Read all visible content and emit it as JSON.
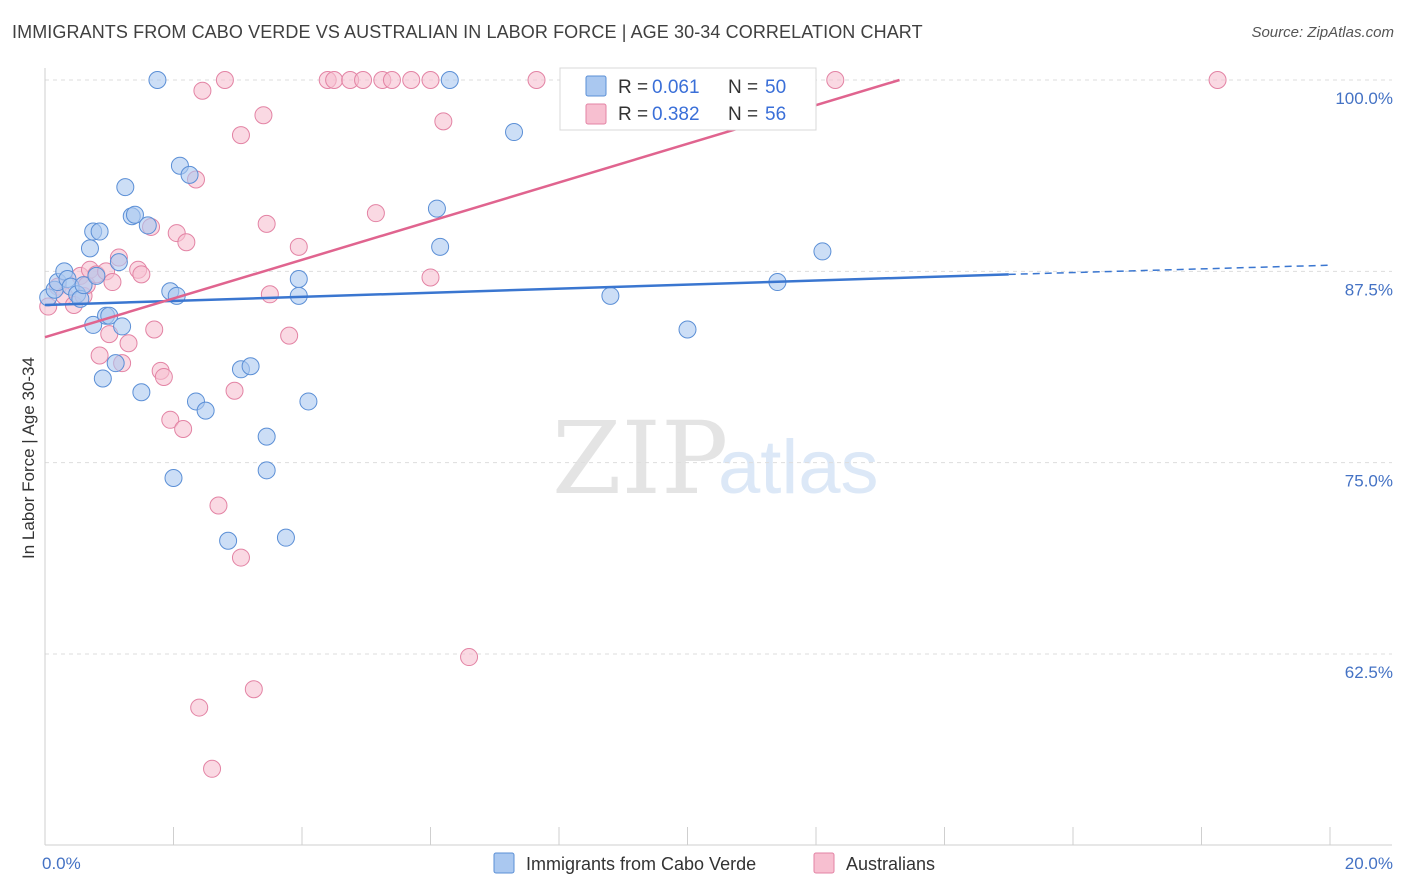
{
  "header": {
    "title": "IMMIGRANTS FROM CABO VERDE VS AUSTRALIAN IN LABOR FORCE | AGE 30-34 CORRELATION CHART",
    "source": "Source: ZipAtlas.com"
  },
  "watermark": {
    "zip": "ZIP",
    "atlas": "atlas"
  },
  "legend": {
    "r_label": "R =",
    "n_label": "N =",
    "entries": [
      {
        "name": "Immigrants from Cabo Verde",
        "r": "0.061",
        "n": "50",
        "fill": "#aac8f0",
        "stroke": "#5b8fd6"
      },
      {
        "name": "Australians",
        "r": "0.382",
        "n": "56",
        "fill": "#f7bfd0",
        "stroke": "#e383a4"
      }
    ]
  },
  "colors": {
    "blue_line": "#3a76d0",
    "pink_line": "#e0648f",
    "grid": "#dddddd",
    "axis_text": "#4472c4"
  },
  "chart_data": {
    "type": "scatter",
    "title": "IMMIGRANTS FROM CABO VERDE VS AUSTRALIAN IN LABOR FORCE | AGE 30-34 CORRELATION CHART",
    "xlabel": "",
    "ylabel": "In Labor Force | Age 30-34",
    "xlim": [
      0,
      20
    ],
    "ylim": [
      50,
      101.5
    ],
    "x_tick_labels": [
      {
        "value": 0,
        "label": "0.0%"
      },
      {
        "value": 20,
        "label": "20.0%"
      }
    ],
    "y_tick_labels": [
      {
        "value": 100,
        "label": "100.0%"
      },
      {
        "value": 87.5,
        "label": "87.5%"
      },
      {
        "value": 75,
        "label": "75.0%"
      },
      {
        "value": 62.5,
        "label": "62.5%"
      }
    ],
    "series": [
      {
        "name": "Immigrants from Cabo Verde",
        "r": 0.061,
        "n": 50,
        "trend": {
          "x": [
            0,
            15
          ],
          "y": [
            85.3,
            87.3
          ],
          "dashed_extension_to_x": 20,
          "dashed_end_y": 87.9
        },
        "points": [
          [
            0.05,
            85.8
          ],
          [
            0.15,
            86.3
          ],
          [
            0.2,
            86.8
          ],
          [
            0.3,
            87.5
          ],
          [
            0.35,
            87.0
          ],
          [
            0.4,
            86.5
          ],
          [
            0.5,
            86.0
          ],
          [
            0.55,
            85.7
          ],
          [
            0.6,
            86.6
          ],
          [
            0.7,
            89.0
          ],
          [
            0.75,
            90.1
          ],
          [
            0.8,
            87.2
          ],
          [
            0.75,
            84.0
          ],
          [
            0.85,
            90.1
          ],
          [
            0.9,
            80.5
          ],
          [
            0.95,
            84.6
          ],
          [
            1.0,
            84.6
          ],
          [
            1.1,
            81.5
          ],
          [
            1.15,
            88.1
          ],
          [
            1.2,
            83.9
          ],
          [
            1.25,
            93.0
          ],
          [
            1.35,
            91.1
          ],
          [
            1.4,
            91.2
          ],
          [
            1.5,
            79.6
          ],
          [
            1.6,
            90.5
          ],
          [
            1.75,
            100.0
          ],
          [
            1.95,
            86.2
          ],
          [
            2.0,
            74.0
          ],
          [
            2.05,
            85.9
          ],
          [
            2.1,
            94.4
          ],
          [
            2.25,
            93.8
          ],
          [
            2.35,
            79.0
          ],
          [
            2.5,
            78.4
          ],
          [
            2.85,
            69.9
          ],
          [
            3.05,
            81.1
          ],
          [
            3.2,
            81.3
          ],
          [
            3.45,
            76.7
          ],
          [
            3.45,
            74.5
          ],
          [
            3.75,
            70.1
          ],
          [
            3.95,
            87.0
          ],
          [
            3.95,
            85.9
          ],
          [
            4.1,
            79.0
          ],
          [
            6.1,
            91.6
          ],
          [
            6.15,
            89.1
          ],
          [
            6.3,
            100.0
          ],
          [
            7.3,
            96.6
          ],
          [
            8.8,
            85.9
          ],
          [
            10.0,
            83.7
          ],
          [
            11.4,
            86.8
          ],
          [
            12.1,
            88.8
          ]
        ]
      },
      {
        "name": "Australians",
        "r": 0.382,
        "n": 56,
        "trend": {
          "x": [
            0,
            13.3
          ],
          "y": [
            83.2,
            100.0
          ]
        },
        "points": [
          [
            0.05,
            85.2
          ],
          [
            0.2,
            86.5
          ],
          [
            0.3,
            85.9
          ],
          [
            0.45,
            85.3
          ],
          [
            0.55,
            87.2
          ],
          [
            0.6,
            85.9
          ],
          [
            0.65,
            86.6
          ],
          [
            0.7,
            87.6
          ],
          [
            0.8,
            87.3
          ],
          [
            0.85,
            82.0
          ],
          [
            0.95,
            87.5
          ],
          [
            1.0,
            83.4
          ],
          [
            1.05,
            86.8
          ],
          [
            1.15,
            88.4
          ],
          [
            1.2,
            81.5
          ],
          [
            1.3,
            82.8
          ],
          [
            1.45,
            87.6
          ],
          [
            1.5,
            87.3
          ],
          [
            1.65,
            90.4
          ],
          [
            1.7,
            83.7
          ],
          [
            1.8,
            81.0
          ],
          [
            1.85,
            80.6
          ],
          [
            1.95,
            77.8
          ],
          [
            2.15,
            77.2
          ],
          [
            2.05,
            90.0
          ],
          [
            2.2,
            89.4
          ],
          [
            2.35,
            93.5
          ],
          [
            2.4,
            59.0
          ],
          [
            2.45,
            99.3
          ],
          [
            2.6,
            55.0
          ],
          [
            2.7,
            72.2
          ],
          [
            2.8,
            100.0
          ],
          [
            2.95,
            79.7
          ],
          [
            3.05,
            96.4
          ],
          [
            3.05,
            68.8
          ],
          [
            3.25,
            60.2
          ],
          [
            3.4,
            97.7
          ],
          [
            3.45,
            90.6
          ],
          [
            3.5,
            86.0
          ],
          [
            3.8,
            83.3
          ],
          [
            3.95,
            89.1
          ],
          [
            4.4,
            100.0
          ],
          [
            4.5,
            100.0
          ],
          [
            4.75,
            100.0
          ],
          [
            4.95,
            100.0
          ],
          [
            5.15,
            91.3
          ],
          [
            5.25,
            100.0
          ],
          [
            5.4,
            100.0
          ],
          [
            5.7,
            100.0
          ],
          [
            6.0,
            100.0
          ],
          [
            6.0,
            87.1
          ],
          [
            6.2,
            97.3
          ],
          [
            6.6,
            62.3
          ],
          [
            7.65,
            100.0
          ],
          [
            12.3,
            100.0
          ],
          [
            18.25,
            100.0
          ]
        ]
      }
    ]
  }
}
